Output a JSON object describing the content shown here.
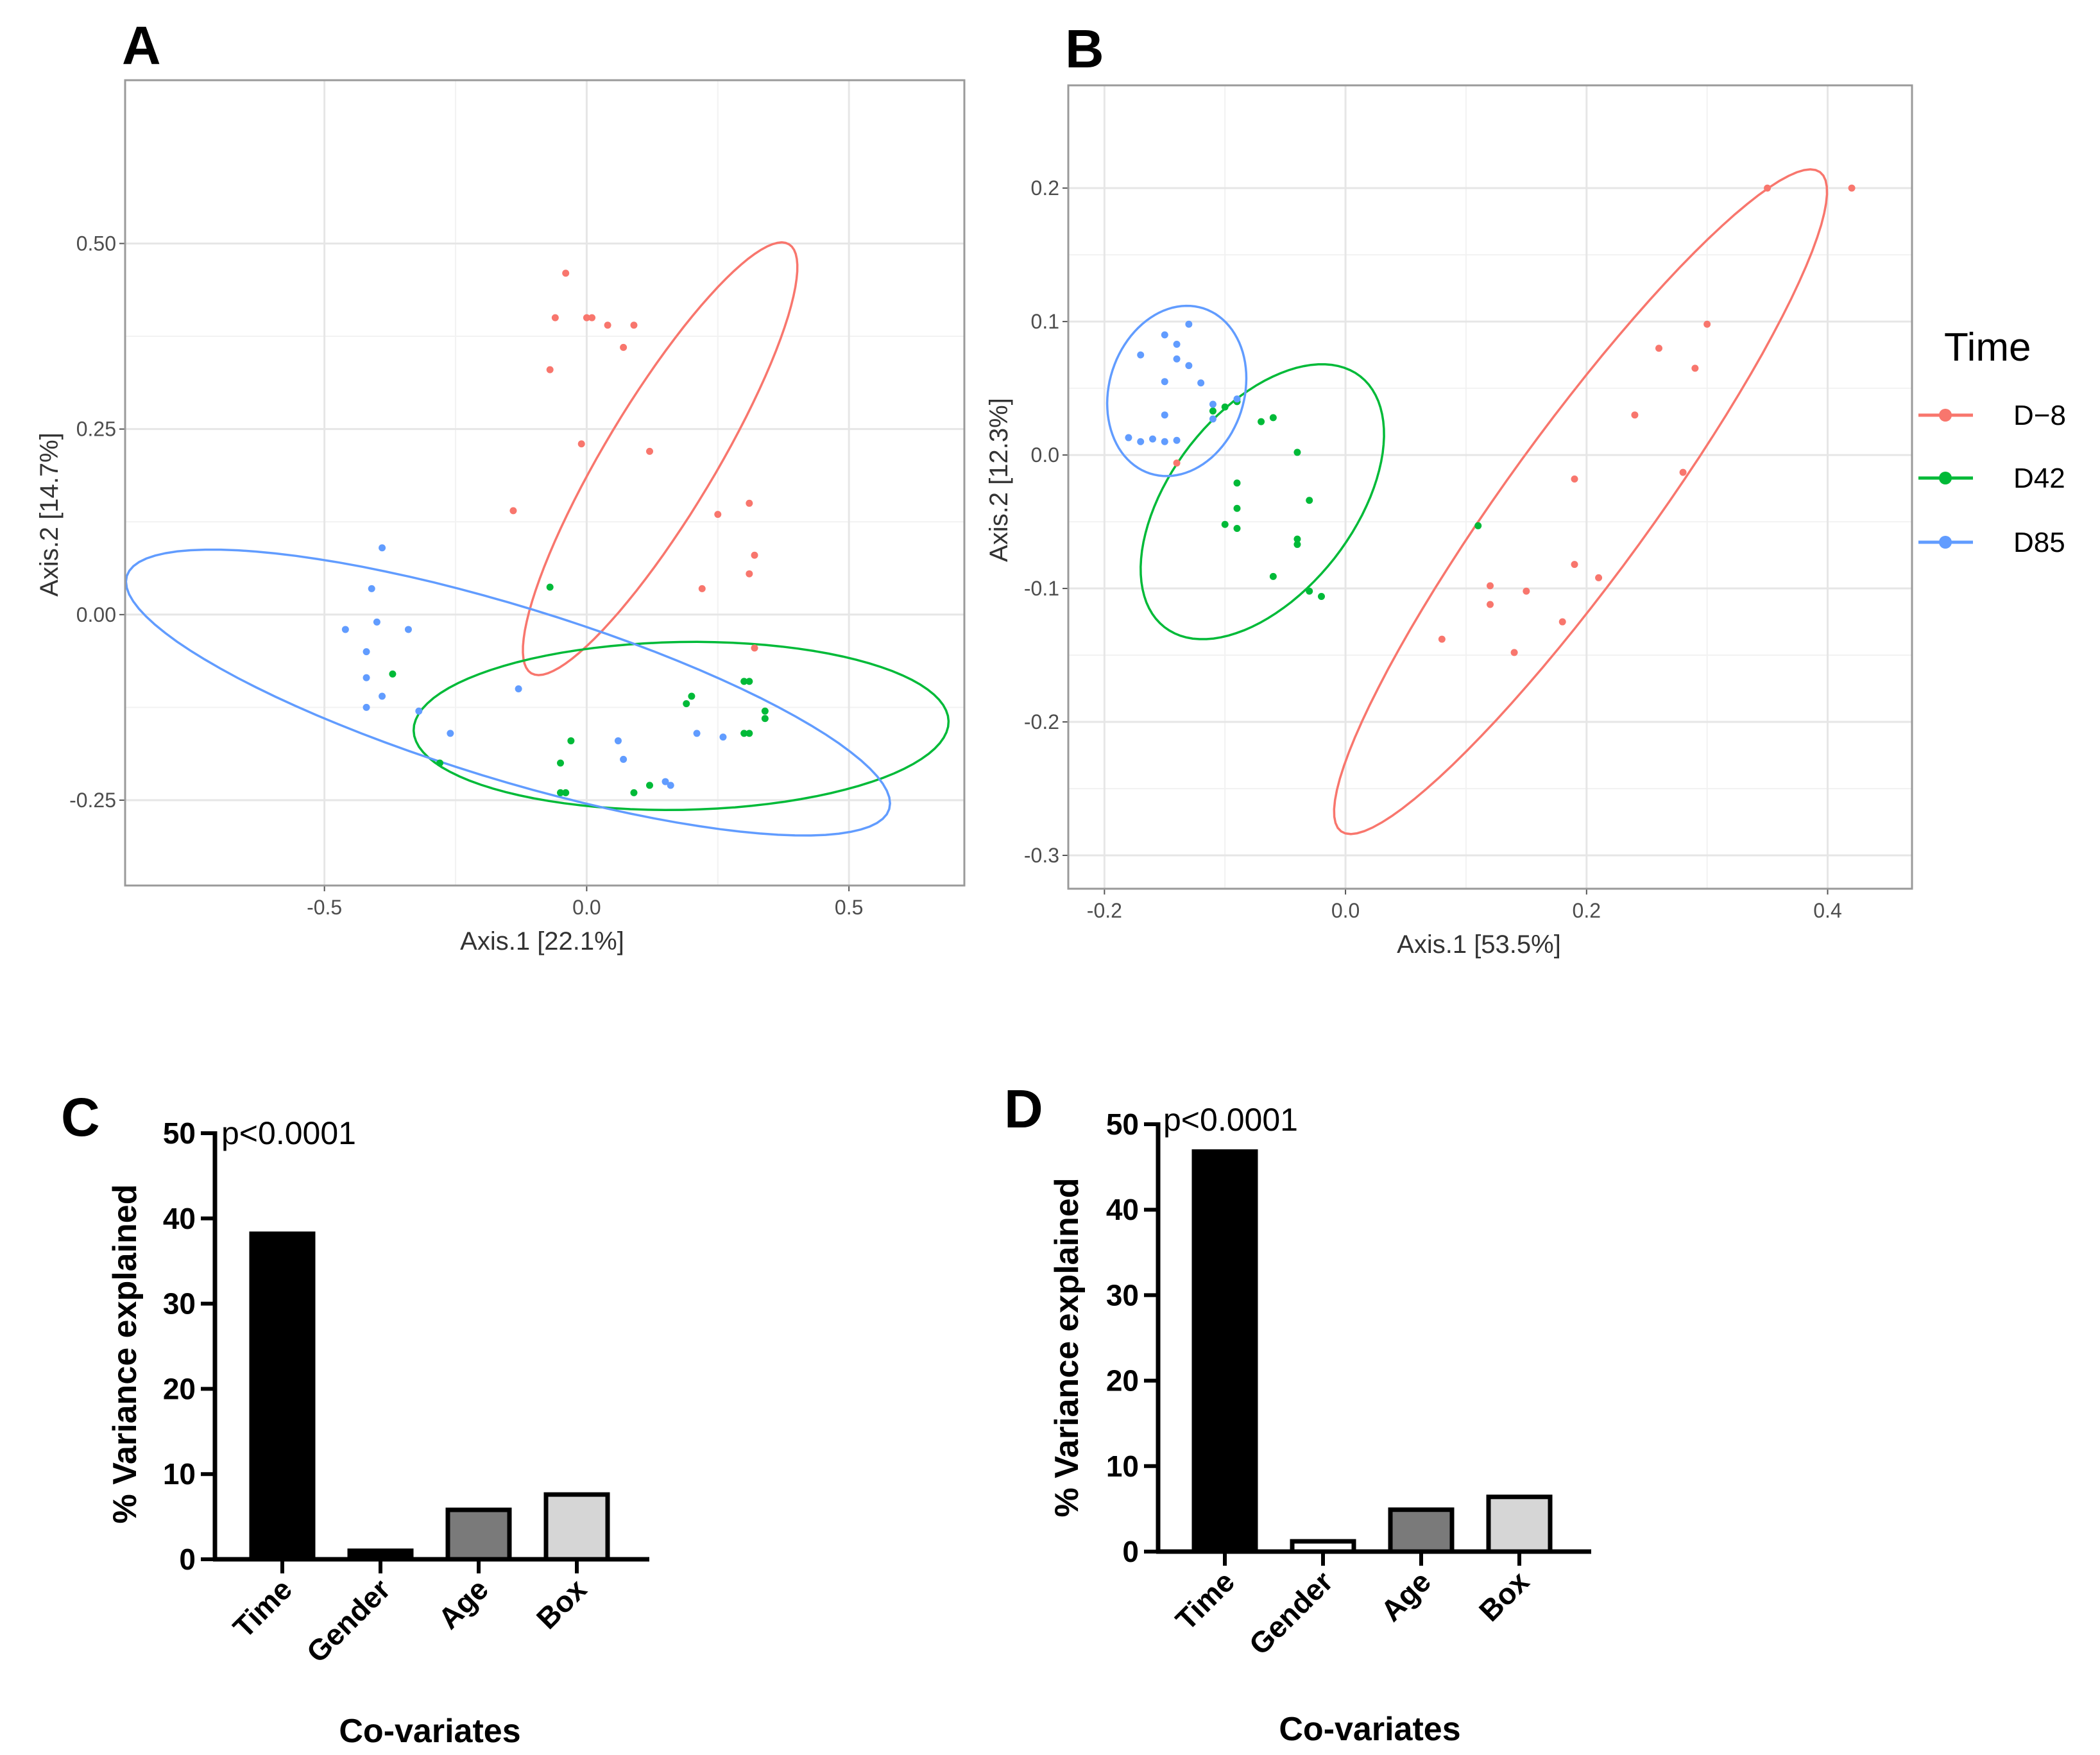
{
  "panels": {
    "a": "A",
    "b": "B",
    "c": "C",
    "d": "D"
  },
  "legend": {
    "title": "Time",
    "items": [
      {
        "label": "D−8",
        "color": "#F8766D"
      },
      {
        "label": "D42",
        "color": "#00BA38"
      },
      {
        "label": "D85",
        "color": "#619CFF"
      }
    ]
  },
  "chart_data": [
    {
      "id": "A",
      "type": "scatter",
      "title": "",
      "xlabel": "Axis.1 [22.1%]",
      "ylabel": "Axis.2 [14.7%]",
      "xlim": [
        -0.88,
        0.72
      ],
      "ylim": [
        -0.365,
        0.72
      ],
      "xticks": [
        -0.5,
        0.0,
        0.5
      ],
      "xtick_labels": [
        "-0.5",
        "0.0",
        "0.5"
      ],
      "yticks": [
        -0.25,
        0.0,
        0.25,
        0.5
      ],
      "ytick_labels": [
        "-0.25",
        "0.00",
        "0.25",
        "0.50"
      ],
      "grid": true,
      "series": [
        {
          "name": "D−8",
          "color": "#F8766D",
          "points": [
            [
              -0.04,
              0.46
            ],
            [
              -0.06,
              0.4
            ],
            [
              0.0,
              0.4
            ],
            [
              0.01,
              0.4
            ],
            [
              0.04,
              0.39
            ],
            [
              0.09,
              0.39
            ],
            [
              0.07,
              0.36
            ],
            [
              -0.07,
              0.33
            ],
            [
              -0.01,
              0.23
            ],
            [
              0.12,
              0.22
            ],
            [
              -0.14,
              0.14
            ],
            [
              0.25,
              0.135
            ],
            [
              0.31,
              0.15
            ],
            [
              0.32,
              0.08
            ],
            [
              0.31,
              0.055
            ],
            [
              0.22,
              0.035
            ],
            [
              0.32,
              -0.045
            ]
          ],
          "ellipse": {
            "cx": 0.14,
            "cy": 0.21,
            "rx": 0.477,
            "ry": 0.105,
            "angle_deg": -59
          }
        },
        {
          "name": "D42",
          "color": "#00BA38",
          "points": [
            [
              -0.07,
              0.037
            ],
            [
              -0.37,
              -0.08
            ],
            [
              -0.28,
              -0.2
            ],
            [
              -0.03,
              -0.17
            ],
            [
              -0.05,
              -0.2
            ],
            [
              -0.05,
              -0.24
            ],
            [
              -0.04,
              -0.24
            ],
            [
              0.09,
              -0.24
            ],
            [
              0.12,
              -0.23
            ],
            [
              0.2,
              -0.11
            ],
            [
              0.19,
              -0.12
            ],
            [
              0.3,
              -0.09
            ],
            [
              0.31,
              -0.09
            ],
            [
              0.34,
              -0.13
            ],
            [
              0.34,
              -0.14
            ],
            [
              0.3,
              -0.16
            ],
            [
              0.31,
              -0.16
            ]
          ],
          "ellipse": {
            "cx": 0.18,
            "cy": -0.15,
            "rx": 0.51,
            "ry": 0.16,
            "angle_deg": -1
          }
        },
        {
          "name": "D85",
          "color": "#619CFF",
          "points": [
            [
              -0.41,
              0.035
            ],
            [
              -0.46,
              -0.02
            ],
            [
              -0.42,
              -0.05
            ],
            [
              -0.4,
              -0.01
            ],
            [
              -0.34,
              -0.02
            ],
            [
              -0.39,
              -0.11
            ],
            [
              -0.42,
              -0.085
            ],
            [
              -0.42,
              -0.125
            ],
            [
              -0.32,
              -0.13
            ],
            [
              -0.26,
              -0.16
            ],
            [
              -0.13,
              -0.1
            ],
            [
              -0.39,
              0.09
            ],
            [
              0.06,
              -0.17
            ],
            [
              0.07,
              -0.195
            ],
            [
              0.15,
              -0.225
            ],
            [
              0.21,
              -0.16
            ],
            [
              0.26,
              -0.165
            ],
            [
              0.16,
              -0.23
            ]
          ],
          "ellipse": {
            "cx": -0.15,
            "cy": -0.105,
            "rx": 0.76,
            "ry": 0.165,
            "angle_deg": 17
          }
        }
      ]
    },
    {
      "id": "B",
      "type": "scatter",
      "title": "",
      "xlabel": "Axis.1 [53.5%]",
      "ylabel": "Axis.2 [12.3%]",
      "xlim": [
        -0.23,
        0.47
      ],
      "ylim": [
        -0.325,
        0.277
      ],
      "xticks": [
        -0.2,
        0.0,
        0.2,
        0.4
      ],
      "xtick_labels": [
        "-0.2",
        "0.0",
        "0.2",
        "0.4"
      ],
      "yticks": [
        -0.3,
        -0.2,
        -0.1,
        0.0,
        0.1,
        0.2
      ],
      "ytick_labels": [
        "-0.3",
        "-0.2",
        "-0.1",
        "0.0",
        "0.1",
        "0.2"
      ],
      "grid": true,
      "series": [
        {
          "name": "D−8",
          "color": "#F8766D",
          "points": [
            [
              0.35,
              0.2
            ],
            [
              0.42,
              0.2
            ],
            [
              0.3,
              0.098
            ],
            [
              0.26,
              0.08
            ],
            [
              0.29,
              0.065
            ],
            [
              0.24,
              0.03
            ],
            [
              0.28,
              -0.013
            ],
            [
              0.19,
              -0.018
            ],
            [
              0.19,
              -0.082
            ],
            [
              0.21,
              -0.092
            ],
            [
              0.12,
              -0.098
            ],
            [
              0.12,
              -0.112
            ],
            [
              0.15,
              -0.102
            ],
            [
              0.18,
              -0.125
            ],
            [
              0.08,
              -0.138
            ],
            [
              0.14,
              -0.148
            ],
            [
              -0.14,
              -0.006
            ]
          ],
          "ellipse": {
            "cx": 0.195,
            "cy": -0.035,
            "rx": 0.338,
            "ry": 0.06,
            "angle_deg": -54
          }
        },
        {
          "name": "D42",
          "color": "#00BA38",
          "points": [
            [
              -0.11,
              0.033
            ],
            [
              -0.1,
              0.036
            ],
            [
              -0.09,
              0.04
            ],
            [
              -0.07,
              0.025
            ],
            [
              -0.06,
              0.028
            ],
            [
              -0.04,
              0.002
            ],
            [
              -0.09,
              -0.021
            ],
            [
              -0.09,
              -0.04
            ],
            [
              -0.1,
              -0.052
            ],
            [
              -0.09,
              -0.055
            ],
            [
              -0.03,
              -0.034
            ],
            [
              -0.04,
              -0.063
            ],
            [
              -0.04,
              -0.067
            ],
            [
              -0.06,
              -0.091
            ],
            [
              -0.03,
              -0.102
            ],
            [
              -0.02,
              -0.106
            ],
            [
              0.11,
              -0.053
            ]
          ],
          "ellipse": {
            "cx": -0.069,
            "cy": -0.035,
            "rx": 0.132,
            "ry": 0.076,
            "angle_deg": -52
          }
        },
        {
          "name": "D85",
          "color": "#619CFF",
          "points": [
            [
              -0.13,
              0.098
            ],
            [
              -0.15,
              0.09
            ],
            [
              -0.14,
              0.083
            ],
            [
              -0.17,
              0.075
            ],
            [
              -0.14,
              0.072
            ],
            [
              -0.13,
              0.067
            ],
            [
              -0.15,
              0.055
            ],
            [
              -0.12,
              0.054
            ],
            [
              -0.09,
              0.042
            ],
            [
              -0.11,
              0.038
            ],
            [
              -0.15,
              0.03
            ],
            [
              -0.11,
              0.027
            ],
            [
              -0.18,
              0.013
            ],
            [
              -0.16,
              0.012
            ],
            [
              -0.14,
              0.011
            ],
            [
              -0.15,
              0.01
            ],
            [
              -0.17,
              0.01
            ]
          ],
          "ellipse": {
            "cx": -0.14,
            "cy": 0.048,
            "rx": 0.072,
            "ry": 0.056,
            "angle_deg": -72
          }
        }
      ]
    },
    {
      "id": "C",
      "type": "bar",
      "title": "",
      "xlabel": "Co-variates",
      "ylabel": "% Variance explained",
      "ylim": [
        0,
        50
      ],
      "yticks": [
        0,
        10,
        20,
        30,
        40,
        50
      ],
      "categories": [
        "Time",
        "Gender",
        "Age",
        "Box"
      ],
      "values": [
        38.2,
        1.0,
        5.8,
        7.6
      ],
      "bar_colors": [
        "#000000",
        "#000000",
        "#7a7a7a",
        "#d6d6d6"
      ],
      "annotation": "p<0.0001"
    },
    {
      "id": "D",
      "type": "bar",
      "title": "",
      "xlabel": "Co-variates",
      "ylabel": "% Variance explained",
      "ylim": [
        0,
        50
      ],
      "yticks": [
        0,
        10,
        20,
        30,
        40,
        50
      ],
      "categories": [
        "Time",
        "Gender",
        "Age",
        "Box"
      ],
      "values": [
        46.8,
        1.2,
        4.9,
        6.4
      ],
      "bar_colors": [
        "#000000",
        "#ffffff",
        "#7a7a7a",
        "#d6d6d6"
      ],
      "annotation": "p<0.0001"
    }
  ]
}
